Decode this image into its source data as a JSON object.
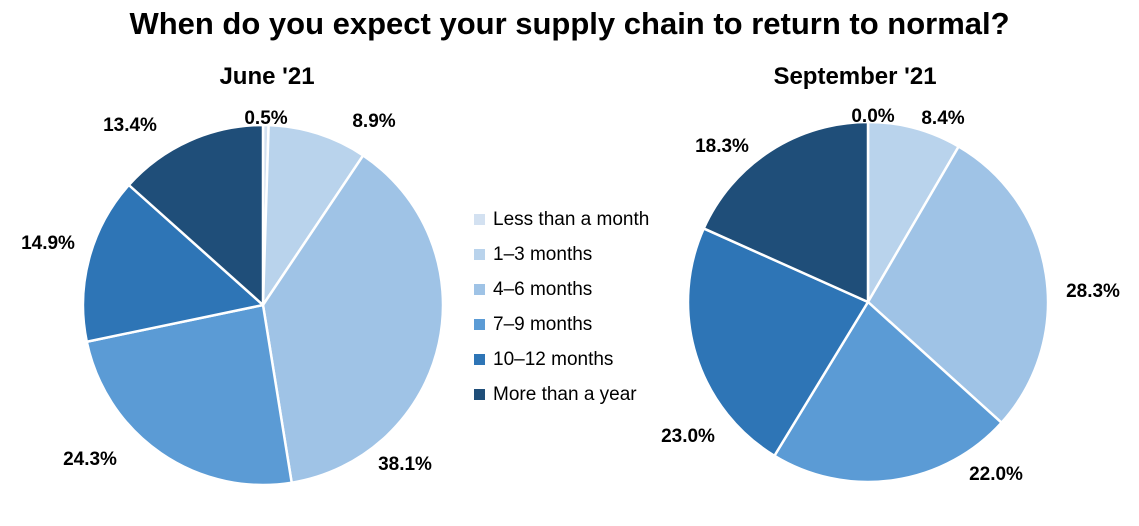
{
  "title": "When do you expect your supply chain to return to normal?",
  "colors": [
    "#d3e1f1",
    "#b9d3ec",
    "#9fc3e6",
    "#5b9bd5",
    "#2e75b6",
    "#1f4e79"
  ],
  "legend": [
    "Less than a month",
    "1–3 months",
    "4–6 months",
    "7–9 months",
    "10–12 months",
    "More than a year"
  ],
  "chart_data": [
    {
      "type": "pie",
      "title": "June '21",
      "categories": [
        "Less than a month",
        "1–3 months",
        "4–6 months",
        "7–9 months",
        "10–12 months",
        "More than a year"
      ],
      "values": [
        0.5,
        8.9,
        38.1,
        24.3,
        14.9,
        13.4
      ],
      "labels": [
        "0.5%",
        "8.9%",
        "38.1%",
        "24.3%",
        "14.9%",
        "13.4%"
      ]
    },
    {
      "type": "pie",
      "title": "September '21",
      "categories": [
        "Less than a month",
        "1–3 months",
        "4–6 months",
        "7–9 months",
        "10–12 months",
        "More than a year"
      ],
      "values": [
        0.0,
        8.4,
        28.3,
        22.0,
        23.0,
        18.3
      ],
      "labels": [
        "0.0%",
        "8.4%",
        "28.3%",
        "22.0%",
        "23.0%",
        "18.3%"
      ]
    }
  ]
}
